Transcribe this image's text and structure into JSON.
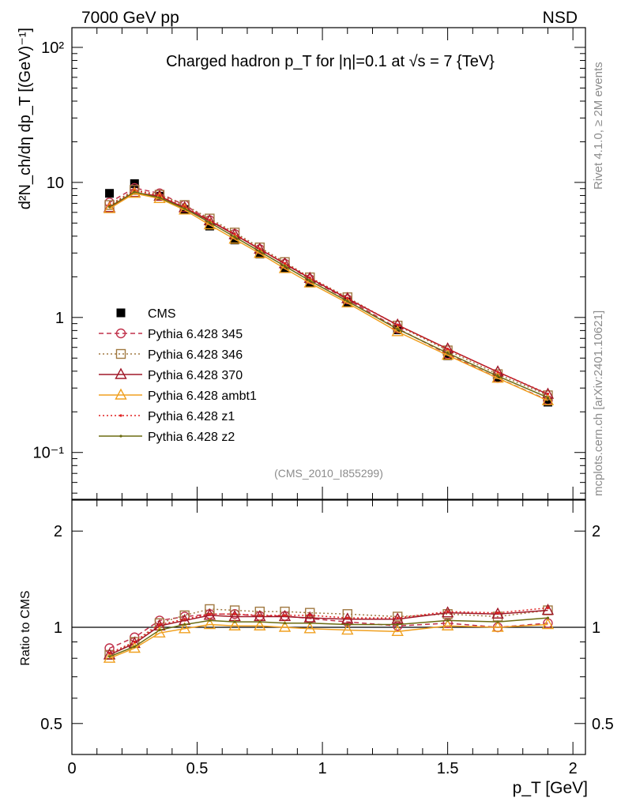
{
  "header": {
    "left_label": "7000 GeV pp",
    "right_label": "NSD"
  },
  "side_labels": {
    "rivet": "Rivet 4.1.0, ≥ 2M events",
    "mcplots": "mcplots.cern.ch [arXiv:2401.10621]"
  },
  "chart_data": [
    {
      "type": "line",
      "panel": "main",
      "title": "Charged hadron p_T for |η|=0.1 at √s = 7 {TeV}",
      "xlabel": "p_T [GeV]",
      "ylabel": "d²N_ch/dη dp_T [(GeV)⁻¹]",
      "yscale": "log",
      "xlim": [
        0,
        2.05
      ],
      "ylim": [
        0.045,
        140
      ],
      "y_tick_labels": [
        "10⁻¹",
        "1",
        "10",
        "10²"
      ],
      "analysis_tag": "(CMS_2010_I855299)",
      "legend_position": "middle-left",
      "x": [
        0.15,
        0.25,
        0.35,
        0.45,
        0.55,
        0.65,
        0.75,
        0.85,
        0.95,
        1.1,
        1.3,
        1.5,
        1.7,
        1.9
      ],
      "series": [
        {
          "name": "CMS",
          "color": "#000000",
          "style": "data",
          "marker": "square-filled",
          "values": [
            8.3,
            9.8,
            7.9,
            6.3,
            4.75,
            3.75,
            2.95,
            2.3,
            1.8,
            1.3,
            0.81,
            0.52,
            0.355,
            0.236
          ]
        },
        {
          "name": "Pythia 6.428 345",
          "color": "#c0304a",
          "style": "dashed",
          "marker": "circle-open",
          "values": [
            7.1,
            9.1,
            8.3,
            6.8,
            5.25,
            4.15,
            3.2,
            2.5,
            1.92,
            1.36,
            0.83,
            0.535,
            0.356,
            0.244
          ]
        },
        {
          "name": "Pythia 6.428 346",
          "color": "#a07840",
          "style": "dotted",
          "marker": "square-open",
          "values": [
            6.8,
            8.8,
            8.1,
            6.8,
            5.4,
            4.25,
            3.3,
            2.57,
            1.98,
            1.41,
            0.87,
            0.57,
            0.38,
            0.265
          ]
        },
        {
          "name": "Pythia 6.428 370",
          "color": "#a01828",
          "style": "solid",
          "marker": "triangle-open",
          "values": [
            6.5,
            8.4,
            7.9,
            6.5,
            5.2,
            4.1,
            3.2,
            2.5,
            1.95,
            1.38,
            0.88,
            0.585,
            0.395,
            0.27
          ]
        },
        {
          "name": "Pythia 6.428 ambt1",
          "color": "#f0a020",
          "style": "solid",
          "marker": "triangle-open",
          "values": [
            6.4,
            8.3,
            7.6,
            6.25,
            4.85,
            3.8,
            2.98,
            2.3,
            1.8,
            1.28,
            0.785,
            0.525,
            0.355,
            0.242
          ]
        },
        {
          "name": "Pythia 6.428 z1",
          "color": "#e02020",
          "style": "dotted",
          "marker": "dot",
          "values": [
            6.7,
            8.7,
            8.0,
            6.6,
            5.25,
            4.15,
            3.22,
            2.52,
            1.97,
            1.39,
            0.88,
            0.585,
            0.395,
            0.272
          ]
        },
        {
          "name": "Pythia 6.428 z2",
          "color": "#6b6b10",
          "style": "solid",
          "marker": "dot",
          "values": [
            6.6,
            8.5,
            7.7,
            6.4,
            5.05,
            3.95,
            3.08,
            2.4,
            1.87,
            1.32,
            0.82,
            0.545,
            0.368,
            0.255
          ]
        }
      ]
    },
    {
      "type": "line",
      "panel": "ratio",
      "xlabel": "p_T [GeV]",
      "ylabel": "Ratio to CMS",
      "yscale": "log",
      "xlim": [
        0,
        2.05
      ],
      "ylim": [
        0.4,
        2.5
      ],
      "x_tick_labels": [
        "0",
        "0.5",
        "1",
        "1.5",
        "2"
      ],
      "y_tick_labels": [
        "0.5",
        "1",
        "2"
      ],
      "reference_line": 1,
      "x": [
        0.15,
        0.25,
        0.35,
        0.45,
        0.55,
        0.65,
        0.75,
        0.85,
        0.95,
        1.1,
        1.3,
        1.5,
        1.7,
        1.9
      ],
      "series": [
        {
          "name": "Pythia 6.428 345",
          "color": "#c0304a",
          "style": "dashed",
          "marker": "circle-open",
          "values": [
            0.86,
            0.93,
            1.05,
            1.08,
            1.1,
            1.1,
            1.085,
            1.085,
            1.065,
            1.04,
            1.01,
            1.03,
            1.0,
            1.03
          ]
        },
        {
          "name": "Pythia 6.428 346",
          "color": "#a07840",
          "style": "dotted",
          "marker": "square-open",
          "values": [
            0.82,
            0.9,
            1.03,
            1.09,
            1.14,
            1.13,
            1.12,
            1.12,
            1.11,
            1.1,
            1.08,
            1.1,
            1.08,
            1.13
          ]
        },
        {
          "name": "Pythia 6.428 370",
          "color": "#a01828",
          "style": "solid",
          "marker": "triangle-open",
          "values": [
            0.82,
            0.89,
            1.01,
            1.05,
            1.09,
            1.08,
            1.08,
            1.08,
            1.07,
            1.06,
            1.06,
            1.11,
            1.1,
            1.13
          ]
        },
        {
          "name": "Pythia 6.428 ambt1",
          "color": "#f0a020",
          "style": "solid",
          "marker": "triangle-open",
          "values": [
            0.8,
            0.86,
            0.96,
            0.99,
            1.02,
            1.01,
            1.01,
            1.0,
            0.99,
            0.98,
            0.97,
            1.01,
            1.0,
            1.02
          ]
        },
        {
          "name": "Pythia 6.428 z1",
          "color": "#e02020",
          "style": "dotted",
          "marker": "dot",
          "values": [
            0.83,
            0.9,
            1.02,
            1.06,
            1.1,
            1.1,
            1.09,
            1.09,
            1.09,
            1.07,
            1.07,
            1.12,
            1.11,
            1.15
          ]
        },
        {
          "name": "Pythia 6.428 z2",
          "color": "#6b6b10",
          "style": "solid",
          "marker": "dot",
          "values": [
            0.81,
            0.87,
            0.98,
            1.02,
            1.05,
            1.04,
            1.04,
            1.03,
            1.03,
            1.02,
            1.02,
            1.05,
            1.04,
            1.07
          ]
        }
      ]
    }
  ]
}
